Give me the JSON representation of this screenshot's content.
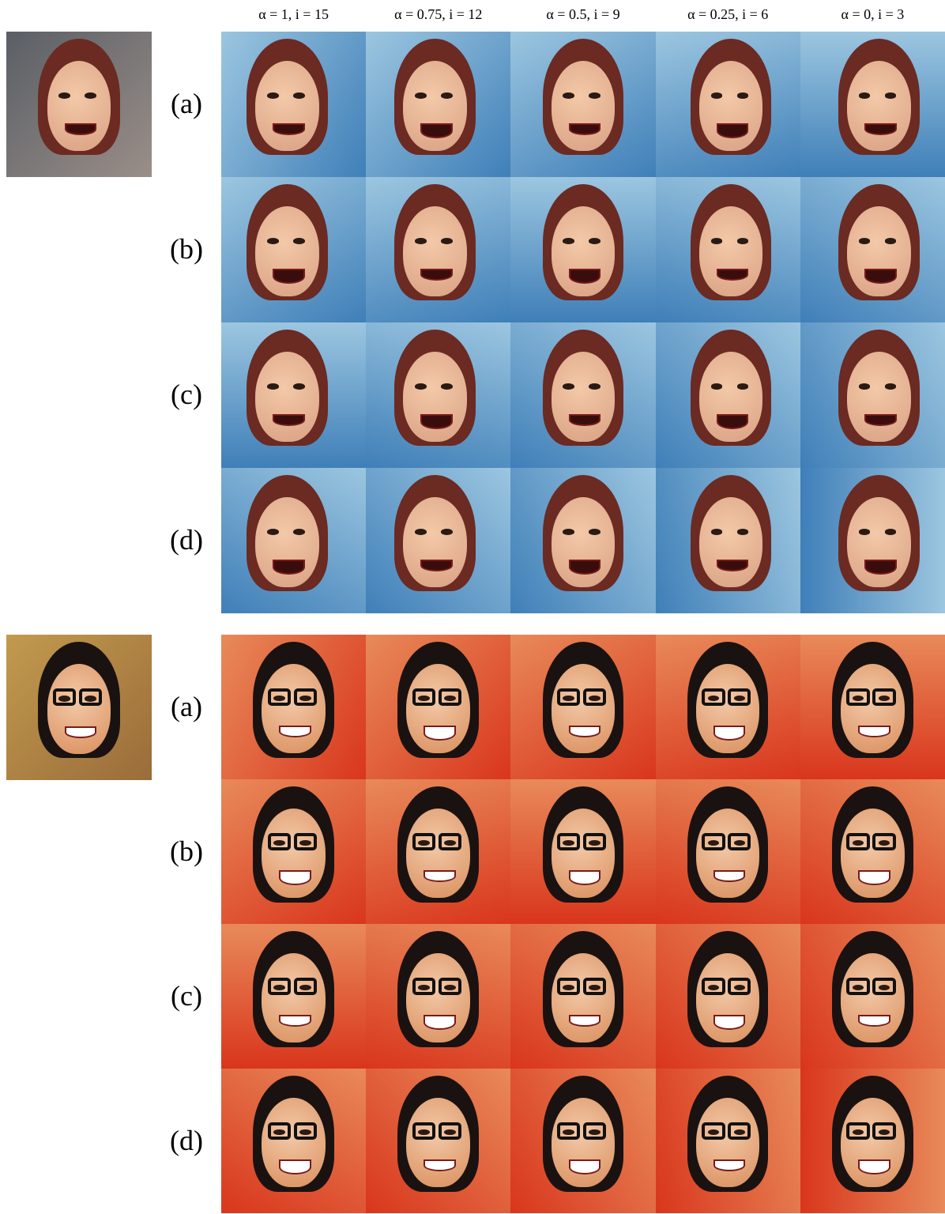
{
  "header": {
    "columns": [
      "α = 1, i = 15",
      "α = 0.75, i = 12",
      "α = 0.5, i = 9",
      "α = 0.25, i = 6",
      "α = 0, i = 3"
    ]
  },
  "groups": [
    {
      "rows": [
        "(a)",
        "(b)",
        "(c)",
        "(d)"
      ]
    },
    {
      "rows": [
        "(a)",
        "(b)",
        "(c)",
        "(d)"
      ]
    }
  ]
}
